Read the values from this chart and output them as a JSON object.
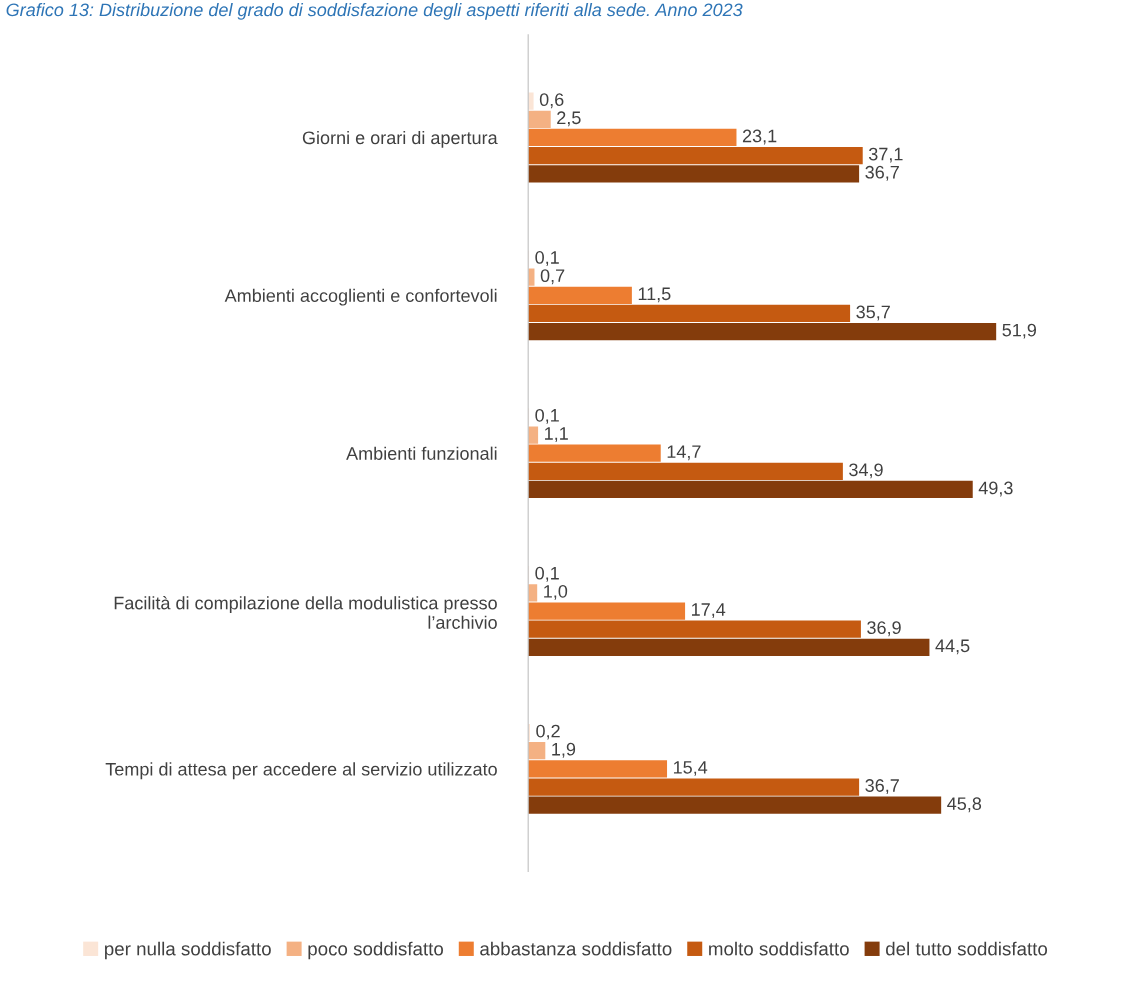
{
  "chart_data": {
    "type": "bar",
    "orientation": "horizontal",
    "title": "Grafico 13: Distribuzione del grado di soddisfazione degli aspetti riferiti alla sede. Anno 2023",
    "categories": [
      "Giorni e orari di apertura",
      "Ambienti accoglienti e confortevoli",
      "Ambienti funzionali",
      "Facilità di compilazione della modulistica presso\nl’archivio",
      "Tempi di attesa per accedere al servizio utilizzato"
    ],
    "series": [
      {
        "name": "per nulla soddisfatto",
        "color": "#fbe5d6",
        "values": [
          0.6,
          0.1,
          0.1,
          0.1,
          0.2
        ],
        "value_labels": [
          "0,6",
          "0,1",
          "0,1",
          "0,1",
          "0,2"
        ]
      },
      {
        "name": "poco soddisfatto",
        "color": "#f4b183",
        "values": [
          2.5,
          0.7,
          1.1,
          1.0,
          1.9
        ],
        "value_labels": [
          "2,5",
          "0,7",
          "1,1",
          "1,0",
          "1,9"
        ]
      },
      {
        "name": "abbastanza soddisfatto",
        "color": "#ed7d31",
        "values": [
          23.1,
          11.5,
          14.7,
          17.4,
          15.4
        ],
        "value_labels": [
          "23,1",
          "11,5",
          "14,7",
          "17,4",
          "15,4"
        ]
      },
      {
        "name": "molto soddisfatto",
        "color": "#c55a11",
        "values": [
          37.1,
          35.7,
          34.9,
          36.9,
          36.7
        ],
        "value_labels": [
          "37,1",
          "35,7",
          "34,9",
          "36,9",
          "36,7"
        ]
      },
      {
        "name": "del tutto soddisfatto",
        "color": "#843c0c",
        "values": [
          36.7,
          51.9,
          49.3,
          44.5,
          45.8
        ],
        "value_labels": [
          "36,7",
          "51,9",
          "49,3",
          "44,5",
          "45,8"
        ]
      }
    ],
    "legend": "bottom",
    "grid": false
  }
}
